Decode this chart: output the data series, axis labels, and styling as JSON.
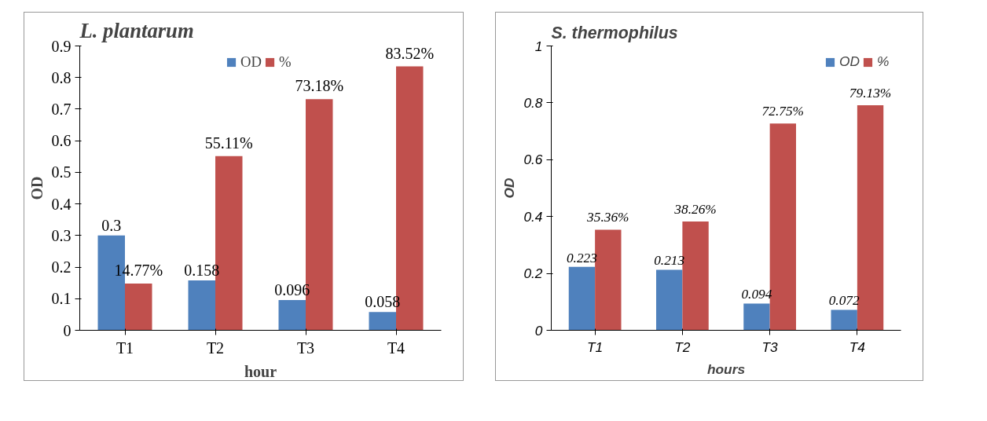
{
  "chart_data": [
    {
      "type": "bar",
      "title": "L. plantarum",
      "xlabel": "hour",
      "ylabel": "OD",
      "categories": [
        "T1",
        "T2",
        "T3",
        "T4"
      ],
      "series": [
        {
          "name": "OD",
          "color": "#4f81bd",
          "values": [
            0.3,
            0.158,
            0.096,
            0.058
          ],
          "value_labels": [
            "0.3",
            "0.158",
            "0.096",
            "0.058"
          ]
        },
        {
          "name": "%",
          "color": "#c0504d",
          "values": [
            0.1477,
            0.5511,
            0.7318,
            0.8352
          ],
          "value_labels": [
            "14.77%",
            "55.11%",
            "73.18%",
            "83.52%"
          ]
        }
      ],
      "ylim": [
        0,
        0.9
      ],
      "yticks": [
        0,
        0.1,
        0.2,
        0.3,
        0.4,
        0.5,
        0.6,
        0.7,
        0.8,
        0.9
      ],
      "legend": "top",
      "grid": false
    },
    {
      "type": "bar",
      "title": "S. thermophilus",
      "xlabel": "hours",
      "ylabel": "OD",
      "categories": [
        "T1",
        "T2",
        "T3",
        "T4"
      ],
      "series": [
        {
          "name": "OD",
          "color": "#4f81bd",
          "values": [
            0.223,
            0.213,
            0.094,
            0.072
          ],
          "value_labels": [
            "0.223",
            "0.213",
            "0.094",
            "0.072"
          ]
        },
        {
          "name": "%",
          "color": "#c0504d",
          "values": [
            0.3536,
            0.3826,
            0.7275,
            0.7913
          ],
          "value_labels": [
            "35.36%",
            "38.26%",
            "72.75%",
            "79.13%"
          ]
        }
      ],
      "ylim": [
        0,
        1
      ],
      "yticks": [
        0,
        0.2,
        0.4,
        0.6,
        0.8,
        1
      ],
      "legend": "top_right",
      "grid": false
    }
  ]
}
